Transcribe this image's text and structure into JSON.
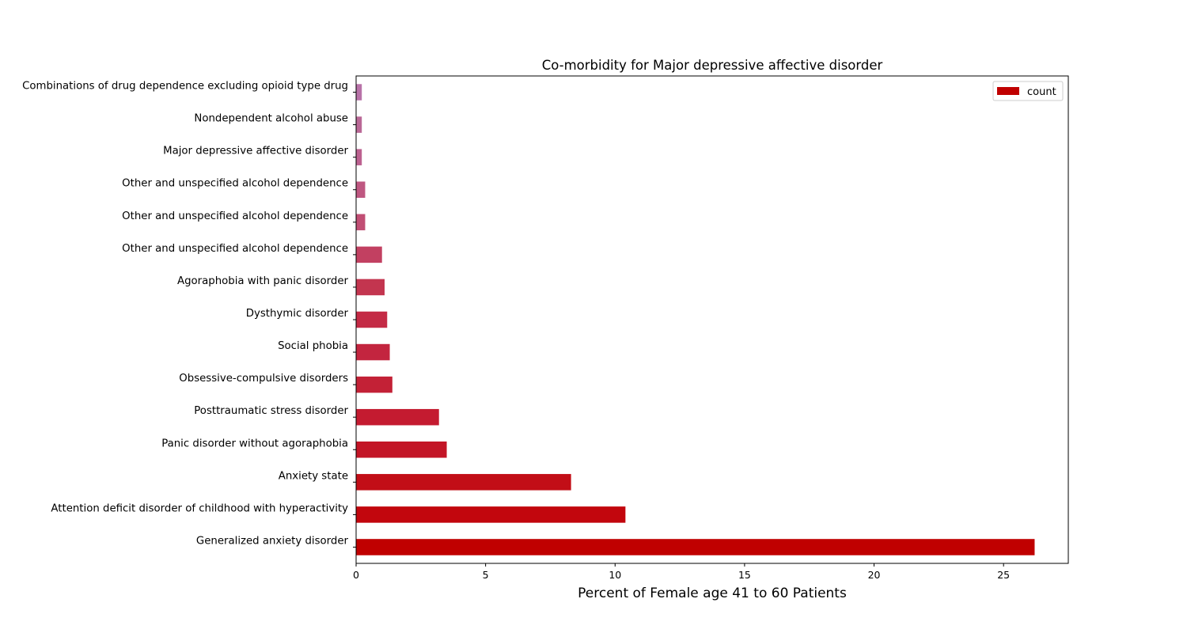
{
  "chart_data": {
    "type": "bar",
    "orientation": "horizontal",
    "title": "Co-morbidity for Major depressive affective disorder",
    "xlabel": "Percent of Female age 41 to 60 Patients",
    "ylabel": "",
    "xlim": [
      0,
      27.5
    ],
    "xticks": [
      0,
      5,
      10,
      15,
      20,
      25
    ],
    "grid": false,
    "legend": {
      "placement": "top-right",
      "entries": [
        "count"
      ]
    },
    "categories": [
      "Generalized anxiety disorder",
      "Attention deficit disorder of childhood with hyperactivity",
      "Anxiety state",
      "Panic disorder without agoraphobia",
      "Posttraumatic stress disorder",
      "Obsessive-compulsive disorders",
      "Social phobia",
      "Dysthymic disorder",
      "Agoraphobia with panic disorder",
      "Other and unspecified alcohol dependence",
      "Other and unspecified alcohol dependence",
      "Other and unspecified alcohol dependence",
      "Major depressive affective disorder",
      "Nondependent alcohol abuse",
      "Combinations of drug dependence excluding opioid type drug"
    ],
    "series": [
      {
        "name": "count",
        "values": [
          26.2,
          10.4,
          8.3,
          3.5,
          3.2,
          1.4,
          1.3,
          1.2,
          1.1,
          1.0,
          0.35,
          0.35,
          0.22,
          0.22,
          0.22
        ]
      }
    ],
    "colors": [
      "#c00000",
      "#c2060d",
      "#c20e17",
      "#c31526",
      "#c41b30",
      "#c32136",
      "#c3253f",
      "#c42a45",
      "#c3354f",
      "#c24061",
      "#c14e74",
      "#bf5781",
      "#bc6190",
      "#ba6896",
      "#b872a8"
    ]
  }
}
